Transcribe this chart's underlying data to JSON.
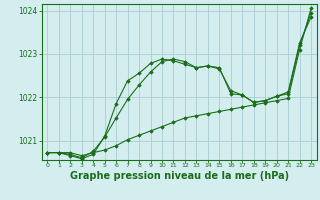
{
  "bg_color": "#d4eef0",
  "grid_color": "#aaccd0",
  "line_color": "#1a6e1a",
  "marker_color": "#1a6e1a",
  "xlabel": "Graphe pression niveau de la mer (hPa)",
  "xlabel_fontsize": 7,
  "yticks": [
    1021,
    1022,
    1023,
    1024
  ],
  "xticks": [
    0,
    1,
    2,
    3,
    4,
    5,
    6,
    7,
    8,
    9,
    10,
    11,
    12,
    13,
    14,
    15,
    16,
    17,
    18,
    19,
    20,
    21,
    22,
    23
  ],
  "xlim": [
    -0.5,
    23.5
  ],
  "ylim": [
    1020.55,
    1024.15
  ],
  "series": [
    [
      1020.72,
      1020.72,
      1020.72,
      1020.65,
      1020.72,
      1020.78,
      1020.88,
      1021.02,
      1021.12,
      1021.22,
      1021.32,
      1021.42,
      1021.52,
      1021.57,
      1021.62,
      1021.67,
      1021.72,
      1021.77,
      1021.82,
      1021.87,
      1021.92,
      1021.97,
      1023.1,
      1024.05
    ],
    [
      1020.72,
      1020.72,
      1020.65,
      1020.58,
      1020.68,
      1021.1,
      1021.85,
      1022.38,
      1022.55,
      1022.78,
      1022.88,
      1022.84,
      1022.76,
      1022.68,
      1022.72,
      1022.68,
      1022.08,
      1022.05,
      1021.88,
      1021.92,
      1022.02,
      1022.12,
      1023.25,
      1023.85
    ],
    [
      1020.72,
      1020.72,
      1020.68,
      1020.6,
      1020.75,
      1021.08,
      1021.52,
      1021.95,
      1022.28,
      1022.58,
      1022.82,
      1022.88,
      1022.82,
      1022.68,
      1022.72,
      1022.65,
      1022.15,
      1022.05,
      1021.88,
      1021.92,
      1022.02,
      1022.08,
      1023.2,
      1023.95
    ]
  ]
}
